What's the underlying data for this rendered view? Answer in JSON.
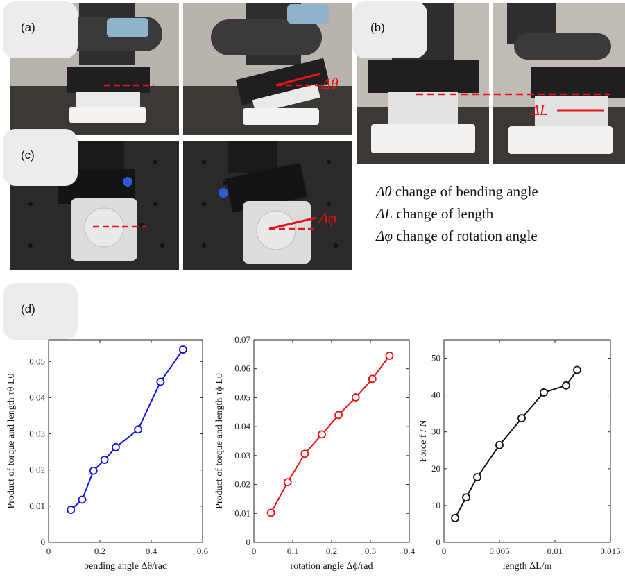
{
  "panel_labels": {
    "a": "(a)",
    "b": "(b)",
    "c": "(c)",
    "d": "(d)"
  },
  "photo_annotations": {
    "theta": "Δθ",
    "length": "ΔL",
    "phi": "Δφ"
  },
  "definitions": [
    {
      "symbol": "Δθ",
      "text": "change of bending angle"
    },
    {
      "symbol": "ΔL",
      "text": "change of length"
    },
    {
      "symbol": "Δφ",
      "text": "change of rotation angle"
    }
  ],
  "colors": {
    "annotation": "#e8121a",
    "series1": "#1010e0",
    "series2": "#e81010",
    "series3": "#111111"
  },
  "chart_data": [
    {
      "type": "line",
      "xlabel": "bending angle Δθ/rad",
      "ylabel": "Product of torque and length τθ L0",
      "xlim": [
        0,
        0.6
      ],
      "ylim": [
        0,
        0.056
      ],
      "xticks": [
        "0",
        "0.2",
        "0.4",
        "0.6"
      ],
      "yticks": [
        "0",
        "0.01",
        "0.02",
        "0.03",
        "0.04",
        "0.05"
      ],
      "x": [
        0.087,
        0.131,
        0.175,
        0.218,
        0.262,
        0.349,
        0.436,
        0.524
      ],
      "values": [
        0.009,
        0.0118,
        0.0198,
        0.0228,
        0.0263,
        0.0312,
        0.0444,
        0.0533
      ],
      "marker": "circle",
      "color": "#1010e0"
    },
    {
      "type": "line",
      "xlabel": "rotation angle Δϕ/rad",
      "ylabel": "Product of torque and length τϕ L0",
      "xlim": [
        0,
        0.4
      ],
      "ylim": [
        0,
        0.07
      ],
      "xticks": [
        "0",
        "0.1",
        "0.2",
        "0.3",
        "0.4"
      ],
      "yticks": [
        "0",
        "0.01",
        "0.02",
        "0.03",
        "0.04",
        "0.05",
        "0.06",
        "0.07"
      ],
      "x": [
        0.044,
        0.087,
        0.131,
        0.175,
        0.218,
        0.262,
        0.305,
        0.349
      ],
      "values": [
        0.0102,
        0.0208,
        0.0306,
        0.0373,
        0.044,
        0.0501,
        0.0565,
        0.0645
      ],
      "marker": "circle",
      "color": "#e81010"
    },
    {
      "type": "line",
      "xlabel": "length ΔL/m",
      "ylabel": "Force f / N",
      "xlim": [
        0,
        0.015
      ],
      "ylim": [
        0,
        55
      ],
      "xticks": [
        "0",
        "0.005",
        "0.01",
        "0.015"
      ],
      "yticks": [
        "0",
        "10",
        "20",
        "30",
        "40",
        "50"
      ],
      "x": [
        0.001,
        0.002,
        0.003,
        0.005,
        0.007,
        0.009,
        0.011,
        0.012
      ],
      "values": [
        6.6,
        12.2,
        17.7,
        26.4,
        33.7,
        40.7,
        42.6,
        46.8
      ],
      "marker": "circle",
      "color": "#111111"
    }
  ]
}
